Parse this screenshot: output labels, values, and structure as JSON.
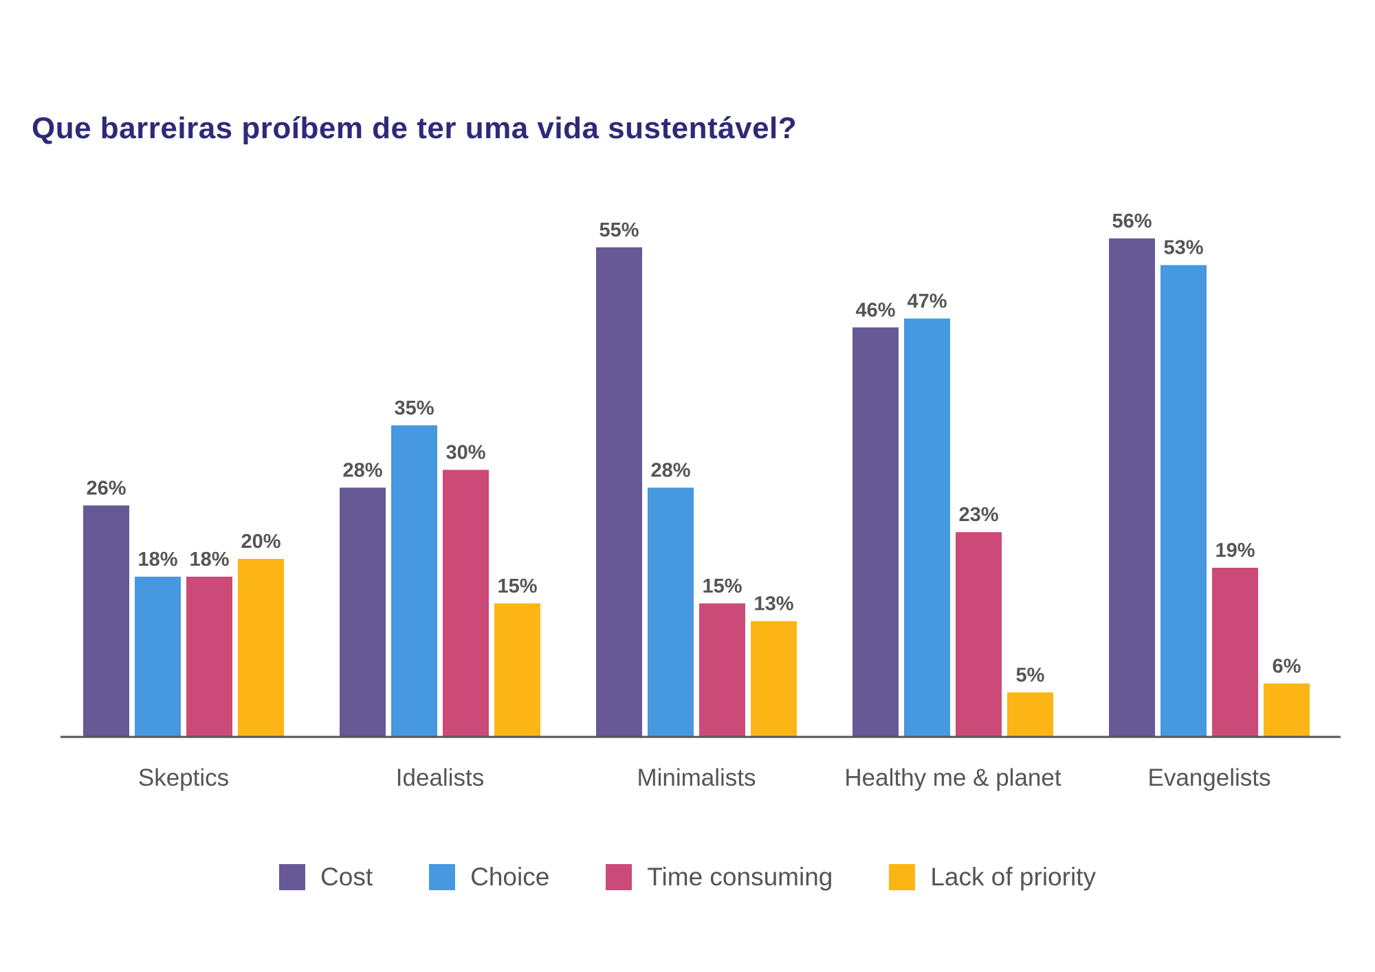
{
  "title": "Que barreiras proíbem de ter uma vida sustentável?",
  "chart_data": {
    "type": "bar",
    "title": "Que barreiras proíbem de ter uma vida sustentável?",
    "categories": [
      "Skeptics",
      "Idealists",
      "Minimalists",
      "Healthy me & planet",
      "Evangelists"
    ],
    "series": [
      {
        "name": "Cost",
        "color": "#675996",
        "values": [
          26,
          28,
          55,
          46,
          56
        ],
        "labels": [
          "26%",
          "28%",
          "55%",
          "46%",
          "56%"
        ]
      },
      {
        "name": "Choice",
        "color": "#4698e0",
        "values": [
          18,
          35,
          28,
          47,
          53
        ],
        "labels": [
          "18%",
          "35%",
          "28%",
          "47%",
          "53%"
        ]
      },
      {
        "name": "Time consuming",
        "color": "#cb4a78",
        "values": [
          18,
          30,
          15,
          23,
          19
        ],
        "labels": [
          "18%",
          "30%",
          "15%",
          "23%",
          "19%"
        ]
      },
      {
        "name": "Lack of priority",
        "color": "#fdb515",
        "values": [
          20,
          15,
          13,
          5,
          6
        ],
        "labels": [
          "20%",
          "15%",
          "13%",
          "5%",
          "6%"
        ]
      }
    ],
    "unit": "%",
    "ylim": [
      0,
      60
    ],
    "grid": false,
    "y_axis_visible": false,
    "legend_position": "bottom-center"
  }
}
